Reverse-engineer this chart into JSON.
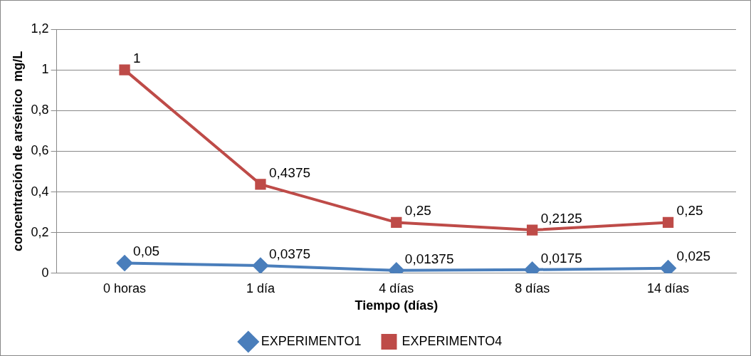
{
  "chart_data": {
    "type": "line",
    "xlabel": "Tiempo (días)",
    "ylabel": "concentración de arsénico  mg/L",
    "categories": [
      "0 horas",
      "1 día",
      "4 días",
      "8 días",
      "14 días"
    ],
    "series": [
      {
        "name": "EXPERIMENTO1",
        "color": "#4a7ebb",
        "marker": "diamond",
        "values": [
          0.05,
          0.0375,
          0.01375,
          0.0175,
          0.025
        ],
        "value_labels": [
          "0,05",
          "0,0375",
          "0,01375",
          "0,0175",
          "0,025"
        ]
      },
      {
        "name": "EXPERIMENTO4",
        "color": "#be4b48",
        "marker": "square",
        "values": [
          1,
          0.4375,
          0.25,
          0.2125,
          0.25
        ],
        "value_labels": [
          "1",
          "0,4375",
          "0,25",
          "0,2125",
          "0,25"
        ]
      }
    ],
    "ylim": [
      0,
      1.2
    ],
    "yticks": [
      0,
      {
        "value": 0.2,
        "label": "0,2"
      },
      {
        "value": 0.4,
        "label": "0,4"
      },
      {
        "value": 0.6,
        "label": "0,6"
      },
      {
        "value": 0.8,
        "label": "0,8"
      },
      1,
      {
        "value": 1.2,
        "label": "1,2"
      }
    ],
    "grid": "y",
    "legend": "bottom",
    "line_style": "solid"
  }
}
